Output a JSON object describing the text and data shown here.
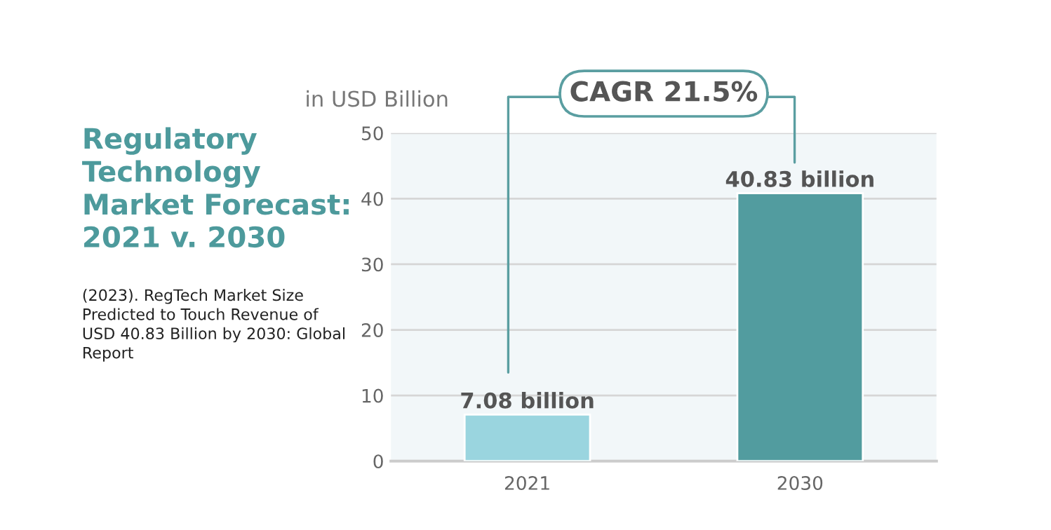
{
  "chart_data": {
    "type": "bar",
    "title": "Regulatory\nTechnology\nMarket Forecast:\n2021 v. 2030",
    "ylabel": "in USD Billion",
    "categories": [
      "2021",
      "2030"
    ],
    "values": [
      7.08,
      40.83
    ],
    "colors": [
      "#9ad5df",
      "#529c9f"
    ],
    "value_labels": [
      "7.08 billion",
      "40.83 billion"
    ],
    "annotations": [
      "CAGR 21.5%",
      "(2023). RegTech Market Size Predicted to Touch Revenue of USD 40.83 Billion by 2030: Global Report"
    ],
    "ylim": [
      0,
      50
    ],
    "yticks": [
      0,
      10,
      20,
      30,
      40,
      50
    ],
    "grid": "y"
  }
}
